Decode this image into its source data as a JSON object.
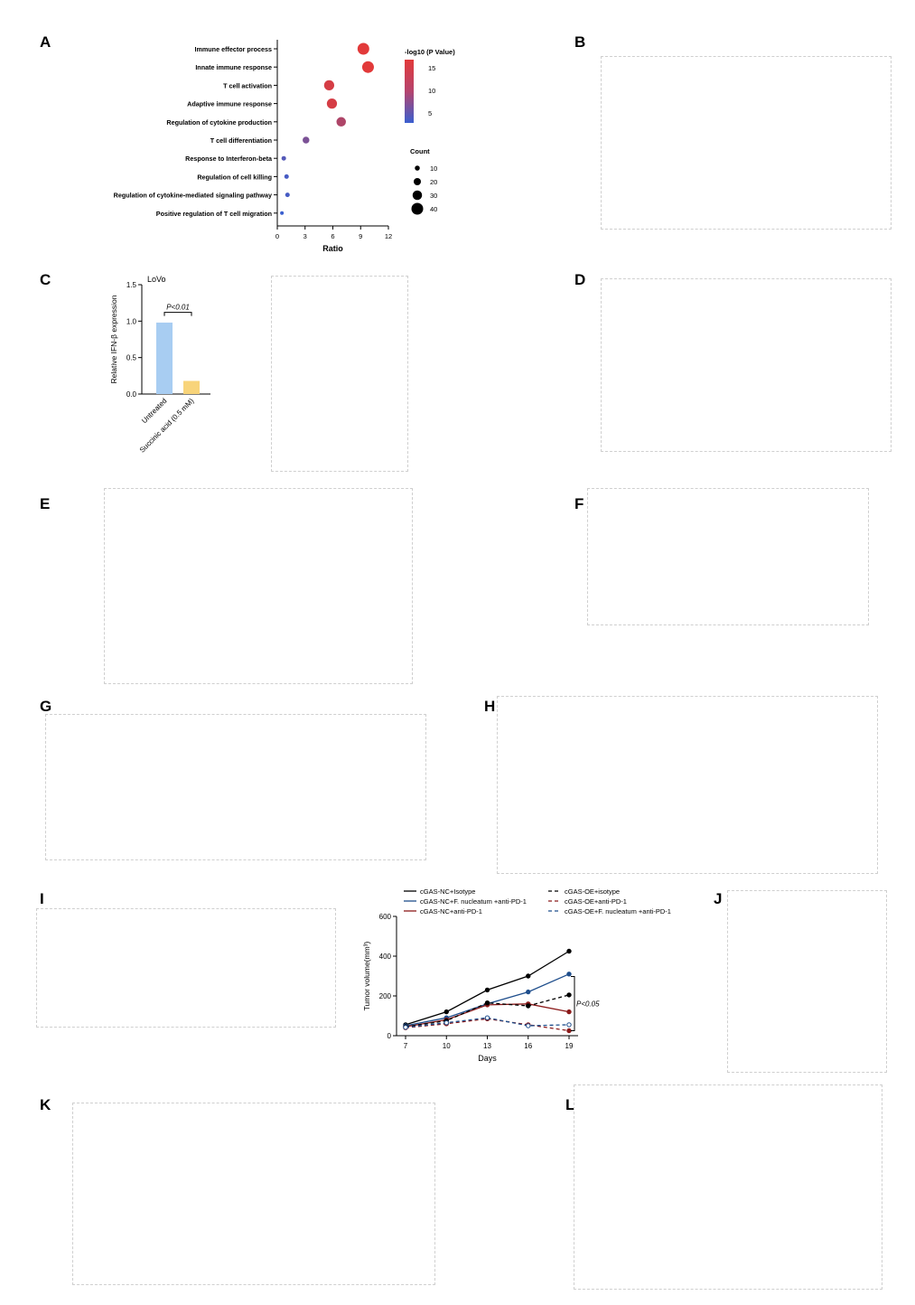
{
  "labels": [
    "A",
    "B",
    "C",
    "D",
    "E",
    "F",
    "G",
    "H",
    "I",
    "J",
    "K",
    "L"
  ],
  "colors": {
    "light_blue": "#a8cdf2",
    "yellow": "#f8d47a",
    "navy": "#1f4e8c",
    "dark_red": "#8b1a1a",
    "black": "#000000",
    "gradient_high": "#e23a3a",
    "gradient_low": "#3a5fcf"
  },
  "chart_data": [
    {
      "panel": "A",
      "type": "scatter",
      "xlabel": "Ratio",
      "xlim": [
        0,
        12
      ],
      "xticks": [
        0,
        3,
        6,
        9,
        12
      ],
      "categories": [
        "Immune effector process",
        "Innate immune response",
        "T cell activation",
        "Adaptive immune response",
        "Regulation of cytokine production",
        "T cell differentiation",
        "Response to Interferon-beta",
        "Regulation of cell killing",
        "Regulation of cytokine-mediated signaling pathway",
        "Positive regulation of T cell migration"
      ],
      "ratio": [
        9.3,
        9.8,
        5.6,
        5.9,
        6.9,
        3.1,
        0.7,
        1.0,
        1.1,
        0.5
      ],
      "neg_log10_p": [
        16,
        16,
        15,
        15,
        12,
        8,
        5,
        4,
        4,
        3
      ],
      "count": [
        40,
        40,
        33,
        33,
        30,
        18,
        8,
        8,
        8,
        4
      ],
      "color_legend": {
        "title": "-log10 (P Value)",
        "ticks": [
          15,
          10,
          5
        ]
      },
      "size_legend": {
        "title": "Count",
        "ticks": [
          10,
          20,
          30,
          40
        ]
      }
    },
    {
      "panel": "C",
      "type": "bar",
      "title": "LoVo",
      "ylabel": "Relative IFN-β expression",
      "ylim": [
        0,
        1.5
      ],
      "yticks": [
        "0.0",
        "0.5",
        "1.0",
        "1.5"
      ],
      "categories": [
        "Untreated",
        "Succinic acid (0.5 mM)"
      ],
      "values": [
        0.98,
        0.18
      ],
      "annotation": "P<0.01"
    },
    {
      "panel": "I",
      "type": "line",
      "xlabel": "Days",
      "ylabel": "Tumor volume(mm³)",
      "x": [
        7,
        10,
        13,
        16,
        19
      ],
      "ylim": [
        0,
        600
      ],
      "yticks": [
        0,
        200,
        400,
        600
      ],
      "annotation": "P<0.05",
      "series": [
        {
          "name": "cGAS-NC+Isotype",
          "values": [
            55,
            120,
            230,
            300,
            425
          ]
        },
        {
          "name": "cGAS-NC+F. nucleatum +anti-PD-1",
          "values": [
            50,
            90,
            160,
            220,
            310
          ]
        },
        {
          "name": "cGAS-NC+anti-PD-1",
          "values": [
            45,
            80,
            155,
            160,
            120
          ]
        },
        {
          "name": "cGAS-OE+isotype",
          "values": [
            45,
            75,
            165,
            150,
            205
          ]
        },
        {
          "name": "cGAS-OE+anti-PD-1",
          "values": [
            40,
            60,
            85,
            55,
            25
          ]
        },
        {
          "name": "cGAS-OE+F. nucleatum +anti-PD-1",
          "values": [
            42,
            65,
            90,
            50,
            55
          ]
        }
      ]
    }
  ]
}
